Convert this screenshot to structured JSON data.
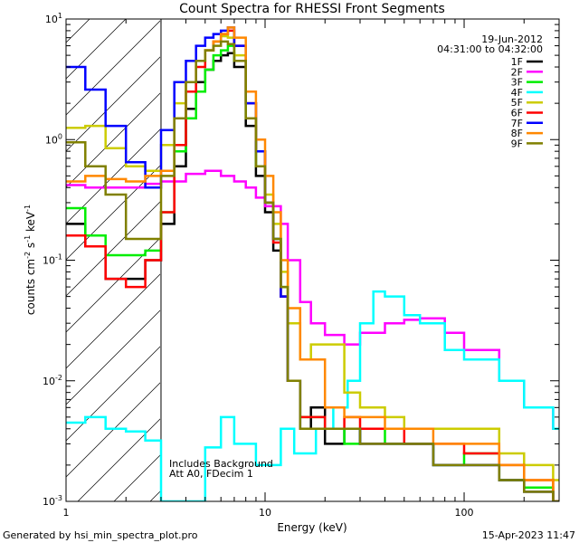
{
  "chart_data": {
    "type": "line",
    "title": "Count Spectra for RHESSI Front Segments",
    "xlabel": "Energy (keV)",
    "ylabel": "counts cm",
    "ylabel_sup1": "-2",
    "ylabel_mid": " s",
    "ylabel_sup2": "-1",
    "ylabel_end": " keV",
    "ylabel_sup3": "-1",
    "x_scale": "log",
    "y_scale": "log",
    "xlim": [
      1,
      300
    ],
    "ylim": [
      0.001,
      10
    ],
    "x_ticks": [
      {
        "v": 1,
        "label": "1"
      },
      {
        "v": 10,
        "label": "10"
      },
      {
        "v": 100,
        "label": "100"
      }
    ],
    "y_ticks": [
      {
        "v": 10,
        "base": "10",
        "exp": "1"
      },
      {
        "v": 1,
        "base": "10",
        "exp": "0"
      },
      {
        "v": 0.1,
        "base": "10",
        "exp": "-1"
      },
      {
        "v": 0.01,
        "base": "10",
        "exp": "-2"
      },
      {
        "v": 0.001,
        "base": "10",
        "exp": "-3"
      }
    ],
    "shaded_region_keV": [
      1,
      3
    ],
    "legend_position": "top-right",
    "date": "19-Jun-2012",
    "time_range": "04:31:00 to 04:32:00",
    "annotations": [
      "Includes Background",
      "Att A0, FDecim 1"
    ],
    "footer_left": "Generated by hsi_min_spectra_plot.pro",
    "footer_right": "15-Apr-2023 11:47",
    "series": [
      {
        "name": "1F",
        "color": "#000000",
        "points": [
          [
            1.0,
            0.2
          ],
          [
            1.25,
            0.13
          ],
          [
            1.58,
            0.07
          ],
          [
            2.0,
            0.07
          ],
          [
            2.5,
            0.1
          ],
          [
            3.0,
            0.2
          ],
          [
            3.5,
            0.6
          ],
          [
            4.0,
            1.8
          ],
          [
            4.5,
            3.0
          ],
          [
            5.0,
            3.8
          ],
          [
            5.5,
            4.5
          ],
          [
            6.0,
            5.0
          ],
          [
            6.5,
            5.2
          ],
          [
            7.0,
            4.0
          ],
          [
            8.0,
            1.3
          ],
          [
            9.0,
            0.5
          ],
          [
            10.0,
            0.25
          ],
          [
            11.0,
            0.12
          ],
          [
            12.0,
            0.05
          ],
          [
            13.0,
            0.01
          ],
          [
            15.0,
            0.004
          ],
          [
            17,
            0.006
          ],
          [
            20,
            0.003
          ],
          [
            25,
            0.004
          ],
          [
            30,
            0.003
          ],
          [
            40,
            0.003
          ],
          [
            50,
            0.003
          ],
          [
            70,
            0.002
          ],
          [
            100,
            0.002
          ],
          [
            150,
            0.0015
          ],
          [
            200,
            0.0012
          ],
          [
            280,
            0.001
          ]
        ]
      },
      {
        "name": "2F",
        "color": "#ff00ff",
        "points": [
          [
            1.0,
            0.42
          ],
          [
            1.25,
            0.4
          ],
          [
            1.58,
            0.4
          ],
          [
            2.0,
            0.4
          ],
          [
            2.5,
            0.43
          ],
          [
            3.0,
            0.45
          ],
          [
            4.0,
            0.52
          ],
          [
            5.0,
            0.55
          ],
          [
            6.0,
            0.5
          ],
          [
            7.0,
            0.45
          ],
          [
            8.0,
            0.4
          ],
          [
            9.0,
            0.33
          ],
          [
            10.0,
            0.28
          ],
          [
            12.0,
            0.2
          ],
          [
            13.0,
            0.1
          ],
          [
            15.0,
            0.045
          ],
          [
            17,
            0.03
          ],
          [
            20,
            0.024
          ],
          [
            25,
            0.02
          ],
          [
            30,
            0.025
          ],
          [
            40,
            0.03
          ],
          [
            50,
            0.032
          ],
          [
            60,
            0.033
          ],
          [
            80,
            0.025
          ],
          [
            100,
            0.018
          ],
          [
            150,
            0.01
          ],
          [
            200,
            0.006
          ],
          [
            280,
            0.004
          ]
        ]
      },
      {
        "name": "3F",
        "color": "#00ee00",
        "points": [
          [
            1.0,
            0.27
          ],
          [
            1.25,
            0.16
          ],
          [
            1.58,
            0.11
          ],
          [
            2.0,
            0.11
          ],
          [
            2.5,
            0.12
          ],
          [
            3.0,
            0.25
          ],
          [
            3.5,
            0.8
          ],
          [
            4.0,
            1.5
          ],
          [
            4.5,
            2.5
          ],
          [
            5.0,
            3.8
          ],
          [
            5.5,
            5.0
          ],
          [
            6.0,
            5.5
          ],
          [
            6.5,
            6.0
          ],
          [
            7.0,
            4.5
          ],
          [
            8.0,
            1.5
          ],
          [
            9.0,
            0.6
          ],
          [
            10.0,
            0.3
          ],
          [
            11.0,
            0.15
          ],
          [
            12.0,
            0.06
          ],
          [
            13.0,
            0.01
          ],
          [
            15,
            0.005
          ],
          [
            20,
            0.004
          ],
          [
            25,
            0.003
          ],
          [
            30,
            0.004
          ],
          [
            40,
            0.003
          ],
          [
            50,
            0.003
          ],
          [
            70,
            0.002
          ],
          [
            100,
            0.0025
          ],
          [
            150,
            0.0015
          ],
          [
            200,
            0.0013
          ],
          [
            280,
            0.001
          ]
        ]
      },
      {
        "name": "4F",
        "color": "#00ffff",
        "points": [
          [
            1.0,
            0.0045
          ],
          [
            1.25,
            0.005
          ],
          [
            1.58,
            0.004
          ],
          [
            2.0,
            0.0038
          ],
          [
            2.5,
            0.0032
          ],
          [
            3.0,
            0.001
          ],
          [
            5.0,
            0.0028
          ],
          [
            6.0,
            0.005
          ],
          [
            7.0,
            0.003
          ],
          [
            9.0,
            0.002
          ],
          [
            12.0,
            0.004
          ],
          [
            14.0,
            0.0025
          ],
          [
            18.0,
            0.004
          ],
          [
            22.0,
            0.006
          ],
          [
            26.0,
            0.01
          ],
          [
            30.0,
            0.03
          ],
          [
            35.0,
            0.055
          ],
          [
            40.0,
            0.05
          ],
          [
            50.0,
            0.035
          ],
          [
            60.0,
            0.03
          ],
          [
            80.0,
            0.018
          ],
          [
            100,
            0.015
          ],
          [
            150,
            0.01
          ],
          [
            200,
            0.006
          ],
          [
            280,
            0.004
          ]
        ]
      },
      {
        "name": "5F",
        "color": "#cccc00",
        "points": [
          [
            1.0,
            1.25
          ],
          [
            1.25,
            1.3
          ],
          [
            1.58,
            0.85
          ],
          [
            2.0,
            0.6
          ],
          [
            2.5,
            0.55
          ],
          [
            3.0,
            0.9
          ],
          [
            3.5,
            2.0
          ],
          [
            4.0,
            3.0
          ],
          [
            4.5,
            4.5
          ],
          [
            5.0,
            5.5
          ],
          [
            5.5,
            6.5
          ],
          [
            6.0,
            7.2
          ],
          [
            6.5,
            7.0
          ],
          [
            7.0,
            5.0
          ],
          [
            8.0,
            2.0
          ],
          [
            9.0,
            0.8
          ],
          [
            10.0,
            0.35
          ],
          [
            11.0,
            0.2
          ],
          [
            12.0,
            0.08
          ],
          [
            13.0,
            0.03
          ],
          [
            15,
            0.015
          ],
          [
            17,
            0.02
          ],
          [
            20,
            0.02
          ],
          [
            25,
            0.008
          ],
          [
            30,
            0.006
          ],
          [
            40,
            0.005
          ],
          [
            50,
            0.004
          ],
          [
            70,
            0.004
          ],
          [
            100,
            0.004
          ],
          [
            150,
            0.0025
          ],
          [
            200,
            0.002
          ],
          [
            280,
            0.0015
          ]
        ]
      },
      {
        "name": "6F",
        "color": "#ff0000",
        "points": [
          [
            1.0,
            0.16
          ],
          [
            1.25,
            0.13
          ],
          [
            1.58,
            0.07
          ],
          [
            2.0,
            0.06
          ],
          [
            2.5,
            0.1
          ],
          [
            3.0,
            0.25
          ],
          [
            3.5,
            0.9
          ],
          [
            4.0,
            2.5
          ],
          [
            4.5,
            4.0
          ],
          [
            5.0,
            5.5
          ],
          [
            5.5,
            6.5
          ],
          [
            6.0,
            7.5
          ],
          [
            6.5,
            8.0
          ],
          [
            7.0,
            6.0
          ],
          [
            8.0,
            2.0
          ],
          [
            9.0,
            0.8
          ],
          [
            10.0,
            0.3
          ],
          [
            11.0,
            0.14
          ],
          [
            12.0,
            0.05
          ],
          [
            13.0,
            0.01
          ],
          [
            15,
            0.005
          ],
          [
            20,
            0.004
          ],
          [
            25,
            0.005
          ],
          [
            30,
            0.004
          ],
          [
            40,
            0.004
          ],
          [
            50,
            0.003
          ],
          [
            70,
            0.003
          ],
          [
            100,
            0.0025
          ],
          [
            150,
            0.002
          ],
          [
            200,
            0.0015
          ],
          [
            280,
            0.001
          ]
        ]
      },
      {
        "name": "7F",
        "color": "#0000ff",
        "points": [
          [
            1.0,
            4.0
          ],
          [
            1.25,
            2.6
          ],
          [
            1.58,
            1.3
          ],
          [
            2.0,
            0.65
          ],
          [
            2.5,
            0.4
          ],
          [
            3.0,
            1.2
          ],
          [
            3.5,
            3.0
          ],
          [
            4.0,
            4.5
          ],
          [
            4.5,
            6.0
          ],
          [
            5.0,
            7.0
          ],
          [
            5.5,
            7.5
          ],
          [
            6.0,
            8.0
          ],
          [
            6.5,
            8.5
          ],
          [
            7.0,
            6.0
          ],
          [
            8.0,
            2.0
          ],
          [
            9.0,
            0.8
          ],
          [
            10.0,
            0.3
          ],
          [
            11.0,
            0.15
          ],
          [
            12.0,
            0.05
          ],
          [
            13.0,
            0.01
          ],
          [
            15,
            0.004
          ],
          [
            20,
            0.004
          ],
          [
            25,
            0.004
          ],
          [
            30,
            0.003
          ],
          [
            40,
            0.003
          ],
          [
            50,
            0.003
          ],
          [
            70,
            0.002
          ],
          [
            100,
            0.002
          ],
          [
            150,
            0.0015
          ],
          [
            200,
            0.0012
          ],
          [
            280,
            0.001
          ]
        ]
      },
      {
        "name": "8F",
        "color": "#ff8800",
        "points": [
          [
            1.0,
            0.45
          ],
          [
            1.25,
            0.5
          ],
          [
            1.58,
            0.47
          ],
          [
            2.0,
            0.45
          ],
          [
            2.5,
            0.5
          ],
          [
            3.0,
            0.55
          ],
          [
            3.5,
            1.5
          ],
          [
            4.0,
            3.0
          ],
          [
            4.5,
            4.5
          ],
          [
            5.0,
            5.5
          ],
          [
            5.5,
            6.5
          ],
          [
            6.0,
            7.5
          ],
          [
            6.5,
            8.5
          ],
          [
            7.0,
            7.0
          ],
          [
            8.0,
            2.5
          ],
          [
            9.0,
            1.0
          ],
          [
            10.0,
            0.5
          ],
          [
            11.0,
            0.25
          ],
          [
            12.0,
            0.1
          ],
          [
            13.0,
            0.04
          ],
          [
            15,
            0.015
          ],
          [
            20,
            0.006
          ],
          [
            25,
            0.005
          ],
          [
            30,
            0.005
          ],
          [
            40,
            0.004
          ],
          [
            50,
            0.004
          ],
          [
            70,
            0.003
          ],
          [
            100,
            0.003
          ],
          [
            150,
            0.002
          ],
          [
            200,
            0.0015
          ],
          [
            280,
            0.001
          ]
        ]
      },
      {
        "name": "9F",
        "color": "#808000",
        "points": [
          [
            1.0,
            0.95
          ],
          [
            1.25,
            0.6
          ],
          [
            1.58,
            0.35
          ],
          [
            2.0,
            0.15
          ],
          [
            2.5,
            0.15
          ],
          [
            3.0,
            0.5
          ],
          [
            3.5,
            1.5
          ],
          [
            4.0,
            3.0
          ],
          [
            4.5,
            4.5
          ],
          [
            5.0,
            5.5
          ],
          [
            5.5,
            6.0
          ],
          [
            6.0,
            6.5
          ],
          [
            6.5,
            6.2
          ],
          [
            7.0,
            4.5
          ],
          [
            8.0,
            1.5
          ],
          [
            9.0,
            0.6
          ],
          [
            10.0,
            0.3
          ],
          [
            11.0,
            0.15
          ],
          [
            12.0,
            0.06
          ],
          [
            13.0,
            0.01
          ],
          [
            15,
            0.004
          ],
          [
            20,
            0.004
          ],
          [
            25,
            0.004
          ],
          [
            30,
            0.003
          ],
          [
            40,
            0.003
          ],
          [
            50,
            0.003
          ],
          [
            70,
            0.002
          ],
          [
            100,
            0.002
          ],
          [
            150,
            0.0015
          ],
          [
            200,
            0.0012
          ],
          [
            280,
            0.001
          ]
        ]
      }
    ]
  }
}
